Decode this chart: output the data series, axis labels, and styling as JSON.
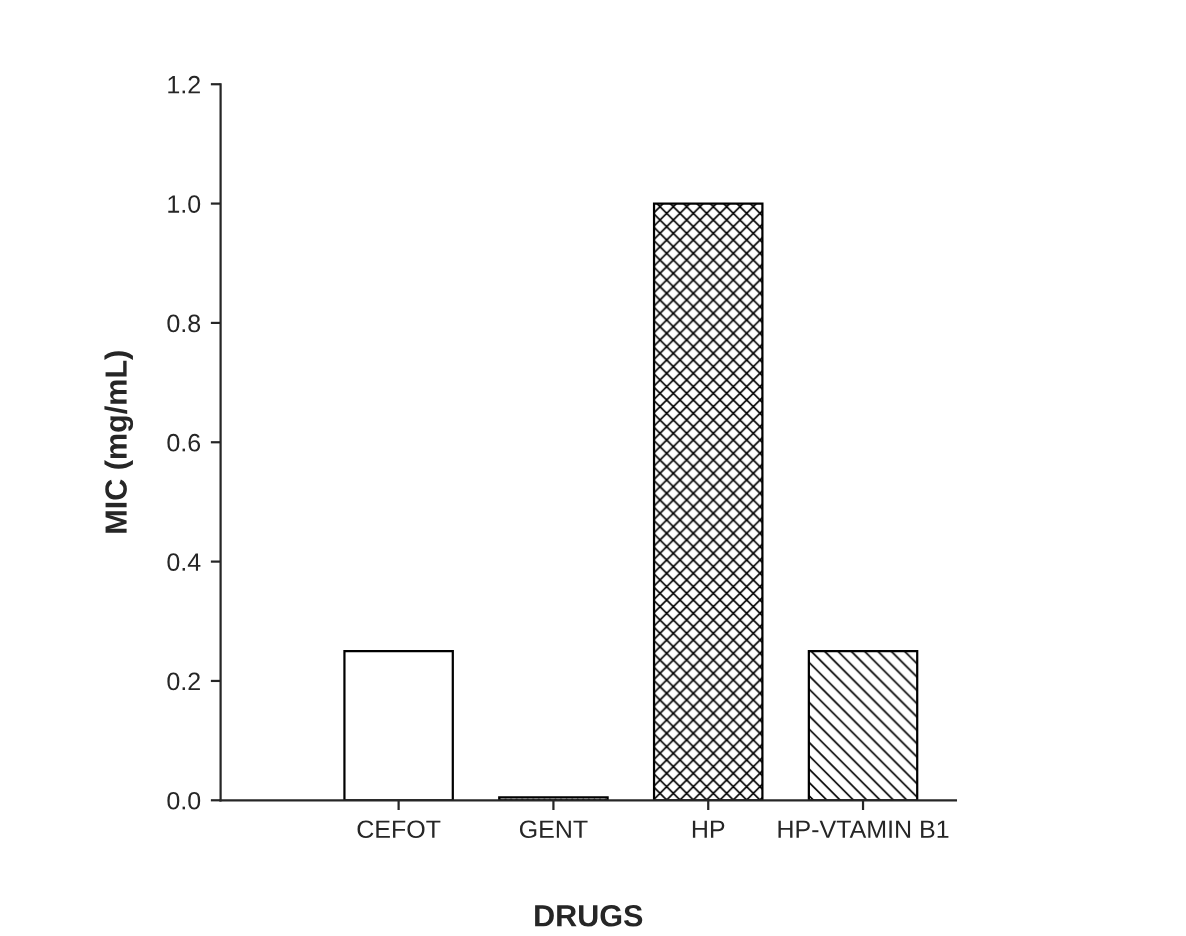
{
  "chart_data": {
    "type": "bar",
    "xlabel": "DRUGS",
    "ylabel": "MIC (mg/mL)",
    "categories": [
      "CEFOT",
      "GENT",
      "HP",
      "HP-VTAMIN B1"
    ],
    "values": [
      0.25,
      0.005,
      1.0,
      0.25
    ],
    "colors": [
      "#000000",
      "#000000",
      "#000000",
      "#000000"
    ],
    "ylim": [
      0,
      1.2
    ],
    "yticks": [
      {
        "value": 0,
        "label": "0.0"
      },
      {
        "value": 0.2,
        "label": "0.2"
      },
      {
        "value": 0.4,
        "label": "0.4"
      },
      {
        "value": 0.6,
        "label": "0.6"
      },
      {
        "value": 0.8,
        "label": "0.8"
      },
      {
        "value": 1.0,
        "label": "1.0"
      },
      {
        "value": 1.2,
        "label": "1.2"
      }
    ],
    "grid": false,
    "legend": false
  }
}
